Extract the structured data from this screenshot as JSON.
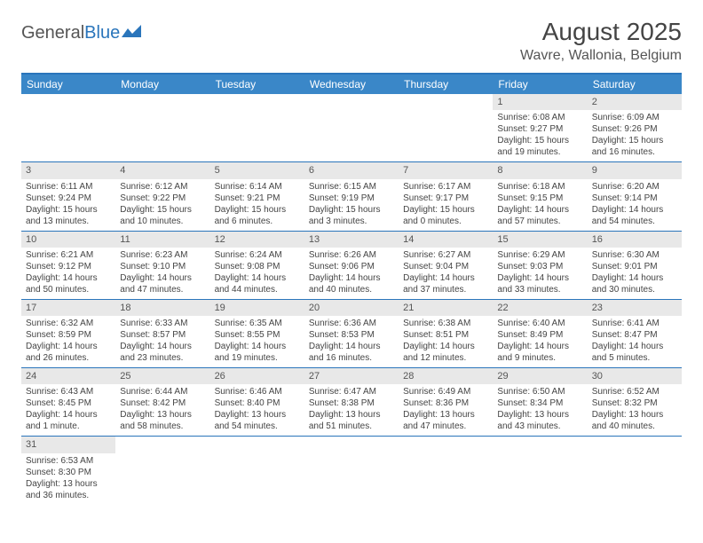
{
  "logo": {
    "text1": "General",
    "text2": "Blue"
  },
  "title": "August 2025",
  "location": "Wavre, Wallonia, Belgium",
  "colors": {
    "header_bg": "#3a87c8",
    "header_border": "#2a75bb",
    "daynum_bg": "#e8e8e8",
    "text": "#444444"
  },
  "weekdays": [
    "Sunday",
    "Monday",
    "Tuesday",
    "Wednesday",
    "Thursday",
    "Friday",
    "Saturday"
  ],
  "weeks": [
    [
      null,
      null,
      null,
      null,
      null,
      {
        "n": "1",
        "sunrise": "6:08 AM",
        "sunset": "9:27 PM",
        "daylight": "15 hours and 19 minutes."
      },
      {
        "n": "2",
        "sunrise": "6:09 AM",
        "sunset": "9:26 PM",
        "daylight": "15 hours and 16 minutes."
      }
    ],
    [
      {
        "n": "3",
        "sunrise": "6:11 AM",
        "sunset": "9:24 PM",
        "daylight": "15 hours and 13 minutes."
      },
      {
        "n": "4",
        "sunrise": "6:12 AM",
        "sunset": "9:22 PM",
        "daylight": "15 hours and 10 minutes."
      },
      {
        "n": "5",
        "sunrise": "6:14 AM",
        "sunset": "9:21 PM",
        "daylight": "15 hours and 6 minutes."
      },
      {
        "n": "6",
        "sunrise": "6:15 AM",
        "sunset": "9:19 PM",
        "daylight": "15 hours and 3 minutes."
      },
      {
        "n": "7",
        "sunrise": "6:17 AM",
        "sunset": "9:17 PM",
        "daylight": "15 hours and 0 minutes."
      },
      {
        "n": "8",
        "sunrise": "6:18 AM",
        "sunset": "9:15 PM",
        "daylight": "14 hours and 57 minutes."
      },
      {
        "n": "9",
        "sunrise": "6:20 AM",
        "sunset": "9:14 PM",
        "daylight": "14 hours and 54 minutes."
      }
    ],
    [
      {
        "n": "10",
        "sunrise": "6:21 AM",
        "sunset": "9:12 PM",
        "daylight": "14 hours and 50 minutes."
      },
      {
        "n": "11",
        "sunrise": "6:23 AM",
        "sunset": "9:10 PM",
        "daylight": "14 hours and 47 minutes."
      },
      {
        "n": "12",
        "sunrise": "6:24 AM",
        "sunset": "9:08 PM",
        "daylight": "14 hours and 44 minutes."
      },
      {
        "n": "13",
        "sunrise": "6:26 AM",
        "sunset": "9:06 PM",
        "daylight": "14 hours and 40 minutes."
      },
      {
        "n": "14",
        "sunrise": "6:27 AM",
        "sunset": "9:04 PM",
        "daylight": "14 hours and 37 minutes."
      },
      {
        "n": "15",
        "sunrise": "6:29 AM",
        "sunset": "9:03 PM",
        "daylight": "14 hours and 33 minutes."
      },
      {
        "n": "16",
        "sunrise": "6:30 AM",
        "sunset": "9:01 PM",
        "daylight": "14 hours and 30 minutes."
      }
    ],
    [
      {
        "n": "17",
        "sunrise": "6:32 AM",
        "sunset": "8:59 PM",
        "daylight": "14 hours and 26 minutes."
      },
      {
        "n": "18",
        "sunrise": "6:33 AM",
        "sunset": "8:57 PM",
        "daylight": "14 hours and 23 minutes."
      },
      {
        "n": "19",
        "sunrise": "6:35 AM",
        "sunset": "8:55 PM",
        "daylight": "14 hours and 19 minutes."
      },
      {
        "n": "20",
        "sunrise": "6:36 AM",
        "sunset": "8:53 PM",
        "daylight": "14 hours and 16 minutes."
      },
      {
        "n": "21",
        "sunrise": "6:38 AM",
        "sunset": "8:51 PM",
        "daylight": "14 hours and 12 minutes."
      },
      {
        "n": "22",
        "sunrise": "6:40 AM",
        "sunset": "8:49 PM",
        "daylight": "14 hours and 9 minutes."
      },
      {
        "n": "23",
        "sunrise": "6:41 AM",
        "sunset": "8:47 PM",
        "daylight": "14 hours and 5 minutes."
      }
    ],
    [
      {
        "n": "24",
        "sunrise": "6:43 AM",
        "sunset": "8:45 PM",
        "daylight": "14 hours and 1 minute."
      },
      {
        "n": "25",
        "sunrise": "6:44 AM",
        "sunset": "8:42 PM",
        "daylight": "13 hours and 58 minutes."
      },
      {
        "n": "26",
        "sunrise": "6:46 AM",
        "sunset": "8:40 PM",
        "daylight": "13 hours and 54 minutes."
      },
      {
        "n": "27",
        "sunrise": "6:47 AM",
        "sunset": "8:38 PM",
        "daylight": "13 hours and 51 minutes."
      },
      {
        "n": "28",
        "sunrise": "6:49 AM",
        "sunset": "8:36 PM",
        "daylight": "13 hours and 47 minutes."
      },
      {
        "n": "29",
        "sunrise": "6:50 AM",
        "sunset": "8:34 PM",
        "daylight": "13 hours and 43 minutes."
      },
      {
        "n": "30",
        "sunrise": "6:52 AM",
        "sunset": "8:32 PM",
        "daylight": "13 hours and 40 minutes."
      }
    ],
    [
      {
        "n": "31",
        "sunrise": "6:53 AM",
        "sunset": "8:30 PM",
        "daylight": "13 hours and 36 minutes."
      },
      null,
      null,
      null,
      null,
      null,
      null
    ]
  ],
  "labels": {
    "sunrise": "Sunrise:",
    "sunset": "Sunset:",
    "daylight": "Daylight:"
  }
}
